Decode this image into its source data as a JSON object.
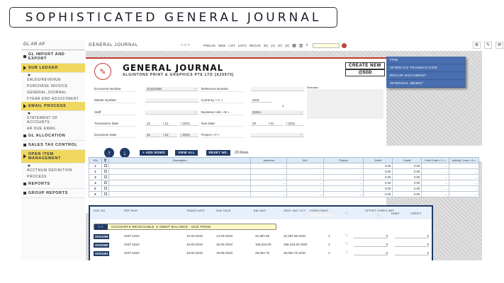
{
  "slide_title": "SOPHISTICATED GENERAL JOURNAL",
  "sidebar": {
    "header": "GL AR AP",
    "items": [
      {
        "label": "GL IMPORT AND EXPORT",
        "marker": "square",
        "active": false,
        "sub": []
      },
      {
        "label": "SUB LEDGER",
        "marker": "triangle",
        "active": true,
        "sub": [
          "SALES/REVENUE",
          "PURCHASE INVOICE",
          "GENERAL JOURNAL",
          "FYEAR END ADJUSTMENT"
        ]
      },
      {
        "label": "EMAIL PROCESS",
        "marker": "triangle",
        "active": true,
        "sub": [
          "STATEMENT OF ACCOUNTS",
          "AR DUE EMAIL"
        ]
      },
      {
        "label": "GL ALLOCATION",
        "marker": "square",
        "active": false,
        "sub": []
      },
      {
        "label": "SALES TAX CONTROL",
        "marker": "square",
        "active": false,
        "sub": []
      },
      {
        "label": "OPEN ITEM MANAGEMENT",
        "marker": "triangle",
        "active": true,
        "sub": [
          "ACCTNUM DEFINITION",
          "PROCESS"
        ]
      },
      {
        "label": "REPORTS",
        "marker": "square",
        "active": false,
        "sub": []
      },
      {
        "label": "GROUP REPORTS",
        "marker": "square",
        "active": false,
        "sub": []
      }
    ]
  },
  "topbar": {
    "title": "GENERAL JOURNAL",
    "dots": "○○○",
    "links": [
      "PRELIM",
      "NEW",
      "LIST",
      "LIST2",
      "RECUR",
      "(R)",
      "(A)",
      "(P)",
      "(S)"
    ],
    "icons": [
      "calendar-icon",
      "chart-icon",
      "search-icon"
    ],
    "search_value": "",
    "go_icon": "›",
    "right_icons": [
      "⚙",
      "✎",
      "✉",
      "⚑",
      "♟"
    ]
  },
  "card": {
    "title": "GENERAL JOURNAL",
    "subtitle": "ALGINTONS PRINT & GRAPHICS PTE LTD  [A25979]",
    "logo_icon": "✎",
    "create_new": "CREATE NEW",
    "currency_badge": "@SGD",
    "remarks_label": "Remarks",
    "fields": {
      "document_number": {
        "label": "Document Number",
        "value": "GJ121048"
      },
      "reference_number": {
        "label": "Reference Number",
        "value": ""
      },
      "master_number": {
        "label": "Master Number",
        "value": ""
      },
      "currency": {
        "label": "Currency  « C »",
        "value": "SGD",
        "rate": "1"
      },
      "staff": {
        "label": "Staff",
        "value": ""
      },
      "business_unit": {
        "label": "Business Unit  « B »",
        "value": "SSNA"
      },
      "transaction_date": {
        "label": "Transaction Date",
        "d": "31",
        "m": "/ 12",
        "y": "/ 2010"
      },
      "due_date": {
        "label": "Due Date",
        "d": "30",
        "m": "/ 01",
        "y": "/ 2011"
      },
      "document_date": {
        "label": "Document Date",
        "d": "31",
        "m": "/ 12",
        "y": "/ 2010"
      },
      "project": {
        "label": "Project  « P »",
        "value": ""
      }
    }
  },
  "side_menu": [
    "FPM",
    "INTER-CO TRANSACTION",
    "RECUR DOCUMENT",
    "INTERNAL MEMO*"
  ],
  "line_tools": {
    "up_icon": "↑",
    "down_icon": "↓",
    "add_rows": "+ ADD ROWS",
    "view_all": "VIEW ALL",
    "reset_no": "RESET NO.",
    "rows_count": "20 Rows"
  },
  "lines_table": {
    "headers": [
      "S/N",
      "🗑",
      "Description",
      "Acctnum",
      "B/U",
      "Project",
      "Debit",
      "Credit",
      "Cost Code « C »",
      "Activity Code « A »"
    ],
    "rows": [
      {
        "sn": "1",
        "debit": "0.00",
        "credit": "0.00"
      },
      {
        "sn": "2",
        "debit": "0.00",
        "credit": "0.00"
      },
      {
        "sn": "3",
        "debit": "0.00",
        "credit": "0.00"
      },
      {
        "sn": "4",
        "debit": "0.00",
        "credit": "0.00"
      },
      {
        "sn": "5",
        "debit": "0.00",
        "credit": "0.00"
      },
      {
        "sn": "6",
        "debit": "0.00",
        "credit": "0.00"
      }
    ]
  },
  "ar_panel": {
    "headers": [
      "DOC NO.",
      "REF NUM",
      "TRANS DATE",
      "DUE DATE",
      "BAL AMT.",
      "ORIG. AMT CCY",
      "FOREX RATE",
      "OFFSET FOREX AMT",
      "DEBIT",
      "CREDIT"
    ],
    "bar_buttons": "○○",
    "bar_text": "ACCOUNTS RECEIVABLE  ⊙  DEBIT BALANCE   -  DUE FROM",
    "rows": [
      {
        "doc": "SIV01359",
        "ref": "HIST-1810",
        "trans_date": "12-02-2010",
        "due_date": "14-03-2010",
        "bal": "22,397.65",
        "orig": "22,397.65 SGD",
        "rate": "1",
        "offset": "0",
        "credit": "0"
      },
      {
        "doc": "SIV02360",
        "ref": "HIST-1810",
        "trans_date": "16-03-2010",
        "due_date": "15-04-2010",
        "bal": "165,315.00",
        "orig": "165,315.00 SGD",
        "rate": "1",
        "offset": "0",
        "credit": "0"
      },
      {
        "doc": "SIV01361",
        "ref": "HIST-1810",
        "trans_date": "19-04-2010",
        "due_date": "19-05-2010",
        "bal": "25,064.75",
        "orig": "25,064.75 SGD",
        "rate": "1",
        "offset": "0",
        "credit": "0"
      }
    ]
  },
  "colors": {
    "accent_red": "#c0392b",
    "navy": "#1f3a66",
    "menu_blue": "#4a6fb0",
    "highlight_yellow": "#f0d860"
  }
}
